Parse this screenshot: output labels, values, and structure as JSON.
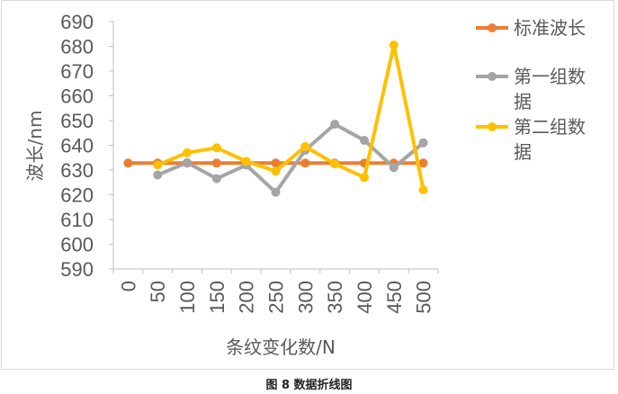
{
  "caption": "图 8 数据折线图",
  "colors": {
    "axis": "#bfbfbf",
    "text": "#595959",
    "frame": "#d9d9d9"
  },
  "chart_data": {
    "type": "line",
    "title": "",
    "xlabel": "条纹变化数/N",
    "ylabel": "波长/nm",
    "categories": [
      "0",
      "50",
      "100",
      "150",
      "200",
      "250",
      "300",
      "350",
      "400",
      "450",
      "500"
    ],
    "y_ticks": [
      "590",
      "600",
      "610",
      "620",
      "630",
      "640",
      "650",
      "660",
      "670",
      "680",
      "690"
    ],
    "ylim": [
      590,
      690
    ],
    "grid": false,
    "legend_position": "right",
    "series": [
      {
        "name": "标准波长",
        "color": "#ed7d31",
        "values": [
          632.8,
          632.8,
          632.8,
          632.8,
          632.8,
          632.8,
          632.8,
          632.8,
          632.8,
          632.8,
          632.8
        ]
      },
      {
        "name": "第一组数据",
        "color": "#a5a5a5",
        "values": [
          null,
          628,
          633,
          626.5,
          632,
          621,
          638,
          648.5,
          642,
          631,
          641
        ]
      },
      {
        "name": "第二组数据",
        "color": "#ffc000",
        "values": [
          null,
          632,
          637,
          639,
          633.5,
          629.5,
          639.5,
          632.5,
          627,
          680.5,
          622
        ]
      }
    ]
  }
}
